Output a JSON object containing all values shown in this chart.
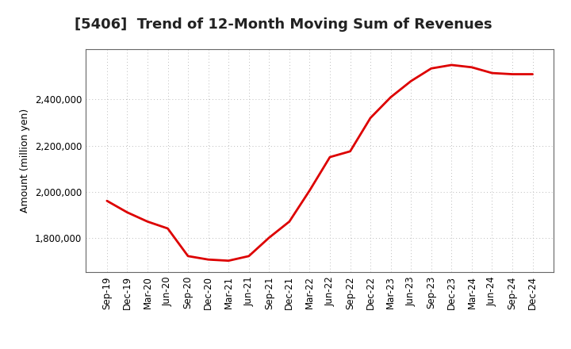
{
  "title": "[5406]  Trend of 12-Month Moving Sum of Revenues",
  "ylabel": "Amount (million yen)",
  "line_color": "#dd0000",
  "background_color": "#ffffff",
  "plot_bg_color": "#ffffff",
  "grid_color": "#bbbbbb",
  "x_labels": [
    "Sep-19",
    "Dec-19",
    "Mar-20",
    "Jun-20",
    "Sep-20",
    "Dec-20",
    "Mar-21",
    "Jun-21",
    "Sep-21",
    "Dec-21",
    "Mar-22",
    "Jun-22",
    "Sep-22",
    "Dec-22",
    "Mar-23",
    "Jun-23",
    "Sep-23",
    "Dec-23",
    "Mar-24",
    "Jun-24",
    "Sep-24",
    "Dec-24"
  ],
  "values": [
    1960000,
    1910000,
    1870000,
    1840000,
    1720000,
    1705000,
    1700000,
    1720000,
    1800000,
    1870000,
    2005000,
    2150000,
    2175000,
    2320000,
    2410000,
    2480000,
    2535000,
    2550000,
    2540000,
    2515000,
    2510000,
    2510000
  ],
  "ylim": [
    1650000,
    2620000
  ],
  "yticks": [
    1800000,
    2000000,
    2200000,
    2400000
  ],
  "ytick_labels": [
    "1,800,000",
    "2,000,000",
    "2,200,000",
    "2,400,000"
  ],
  "title_fontsize": 13,
  "label_fontsize": 9,
  "tick_fontsize": 8.5
}
